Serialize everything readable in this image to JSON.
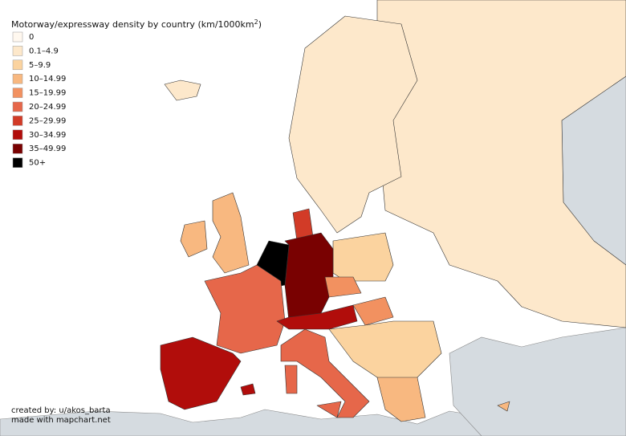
{
  "title": {
    "text": "Motorway/expressway density by country (km/1000km",
    "sup": "2",
    "end": ")"
  },
  "legend": [
    {
      "label": "0",
      "color": "#fff8ef"
    },
    {
      "label": "0.1–4.9",
      "color": "#fde8cb"
    },
    {
      "label": "5–9.9",
      "color": "#fbd39f"
    },
    {
      "label": "10–14.99",
      "color": "#f8b880"
    },
    {
      "label": "15–19.99",
      "color": "#f29160"
    },
    {
      "label": "20–24.99",
      "color": "#e6674a"
    },
    {
      "label": "25–29.99",
      "color": "#d23b27"
    },
    {
      "label": "30–34.99",
      "color": "#b10d0b"
    },
    {
      "label": "35–49.99",
      "color": "#790101"
    },
    {
      "label": "50+",
      "color": "#000000"
    }
  ],
  "credits": [
    "created by: u/akos_barta",
    "made with mapchart.net"
  ]
}
